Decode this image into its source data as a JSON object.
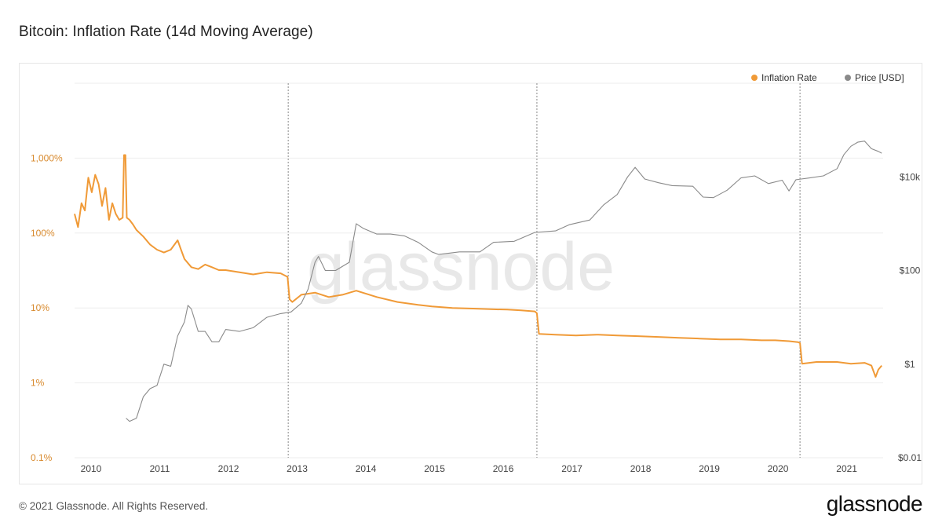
{
  "page": {
    "title": "Bitcoin: Inflation Rate (14d Moving Average)",
    "copyright": "© 2021 Glassnode. All Rights Reserved.",
    "brand": "glassnode",
    "watermark": "glassnode"
  },
  "colors": {
    "inflation": "#f09a37",
    "price": "#8a8a8a",
    "left_axis_text": "#d88a2e",
    "grid": "#eeeeee"
  },
  "chart_data": {
    "type": "line",
    "title": "Bitcoin: Inflation Rate (14d Moving Average)",
    "legend_position": "top-right",
    "grid": true,
    "x_ticks": [
      "2010",
      "2011",
      "2012",
      "2013",
      "2014",
      "2015",
      "2016",
      "2017",
      "2018",
      "2019",
      "2020",
      "2021"
    ],
    "x_range": [
      2009.8,
      2021.57
    ],
    "y_left": {
      "scale": "log",
      "range": [
        0.1,
        10000
      ],
      "ticks": [
        {
          "v": 1000,
          "label": "1,000%"
        },
        {
          "v": 100,
          "label": "100%"
        },
        {
          "v": 10,
          "label": "10%"
        },
        {
          "v": 1,
          "label": "1%"
        },
        {
          "v": 0.1,
          "label": "0.1%"
        }
      ]
    },
    "y_right": {
      "scale": "log",
      "range": [
        0.01,
        1000000
      ],
      "ticks": [
        {
          "v": 10000,
          "label": "$10k"
        },
        {
          "v": 100,
          "label": "$100"
        },
        {
          "v": 1,
          "label": "$1"
        },
        {
          "v": 0.01,
          "label": "$0.01"
        }
      ]
    },
    "halvings": [
      2012.91,
      2016.53,
      2020.36
    ],
    "series": [
      {
        "name": "Inflation Rate",
        "axis": "left",
        "x": [
          2009.8,
          2009.85,
          2009.9,
          2009.95,
          2010.0,
          2010.05,
          2010.1,
          2010.15,
          2010.2,
          2010.25,
          2010.3,
          2010.35,
          2010.4,
          2010.45,
          2010.5,
          2010.52,
          2010.54,
          2010.56,
          2010.6,
          2010.65,
          2010.7,
          2010.8,
          2010.9,
          2011.0,
          2011.1,
          2011.2,
          2011.3,
          2011.35,
          2011.4,
          2011.5,
          2011.6,
          2011.7,
          2011.8,
          2011.9,
          2012.0,
          2012.2,
          2012.4,
          2012.6,
          2012.8,
          2012.9,
          2012.93,
          2012.97,
          2013.1,
          2013.3,
          2013.5,
          2013.7,
          2013.9,
          2014.2,
          2014.5,
          2014.8,
          2015.0,
          2015.3,
          2015.6,
          2015.9,
          2016.1,
          2016.3,
          2016.5,
          2016.53,
          2016.56,
          2016.8,
          2017.1,
          2017.4,
          2017.7,
          2018.0,
          2018.3,
          2018.6,
          2018.9,
          2019.2,
          2019.5,
          2019.8,
          2020.0,
          2020.2,
          2020.33,
          2020.36,
          2020.39,
          2020.6,
          2020.9,
          2021.1,
          2021.3,
          2021.4,
          2021.46,
          2021.5,
          2021.55
        ],
        "y": [
          180,
          120,
          250,
          200,
          550,
          350,
          600,
          450,
          230,
          400,
          150,
          250,
          180,
          150,
          160,
          1100,
          1100,
          160,
          150,
          130,
          110,
          90,
          70,
          60,
          55,
          60,
          80,
          60,
          45,
          35,
          33,
          38,
          35,
          32,
          32,
          30,
          28,
          30,
          29,
          26,
          13,
          12,
          15,
          16,
          14,
          15,
          17,
          14,
          12,
          11,
          10.5,
          10,
          9.8,
          9.6,
          9.5,
          9.3,
          9.0,
          8.5,
          4.5,
          4.4,
          4.3,
          4.4,
          4.3,
          4.2,
          4.1,
          4.0,
          3.9,
          3.8,
          3.8,
          3.7,
          3.7,
          3.6,
          3.5,
          3.4,
          1.8,
          1.9,
          1.9,
          1.8,
          1.85,
          1.7,
          1.2,
          1.5,
          1.7
        ]
      },
      {
        "name": "Price [USD]",
        "axis": "right",
        "x": [
          2010.55,
          2010.6,
          2010.7,
          2010.8,
          2010.9,
          2011.0,
          2011.1,
          2011.2,
          2011.3,
          2011.4,
          2011.45,
          2011.5,
          2011.6,
          2011.7,
          2011.8,
          2011.9,
          2012.0,
          2012.2,
          2012.4,
          2012.6,
          2012.8,
          2012.95,
          2013.1,
          2013.2,
          2013.3,
          2013.35,
          2013.45,
          2013.6,
          2013.8,
          2013.9,
          2014.0,
          2014.2,
          2014.4,
          2014.6,
          2014.8,
          2015.0,
          2015.1,
          2015.4,
          2015.7,
          2015.9,
          2016.2,
          2016.5,
          2016.8,
          2017.0,
          2017.3,
          2017.5,
          2017.7,
          2017.85,
          2017.96,
          2018.1,
          2018.3,
          2018.5,
          2018.8,
          2018.95,
          2019.1,
          2019.3,
          2019.5,
          2019.7,
          2019.9,
          2020.1,
          2020.2,
          2020.3,
          2020.5,
          2020.7,
          2020.9,
          2021.0,
          2021.1,
          2021.2,
          2021.3,
          2021.4,
          2021.5,
          2021.55
        ],
        "y": [
          0.07,
          0.06,
          0.07,
          0.2,
          0.3,
          0.35,
          1.0,
          0.9,
          4,
          8,
          18,
          15,
          5,
          5,
          3,
          3,
          5.5,
          5,
          6,
          10,
          12,
          13,
          20,
          40,
          150,
          200,
          100,
          100,
          150,
          1000,
          800,
          600,
          600,
          550,
          400,
          250,
          220,
          250,
          250,
          400,
          420,
          650,
          700,
          950,
          1200,
          2500,
          4200,
          10000,
          16000,
          9000,
          7500,
          6500,
          6300,
          3700,
          3600,
          5200,
          9500,
          10500,
          7200,
          8500,
          5000,
          8700,
          9500,
          10500,
          15000,
          30000,
          45000,
          55000,
          58000,
          40000,
          35000,
          32000
        ]
      }
    ]
  }
}
